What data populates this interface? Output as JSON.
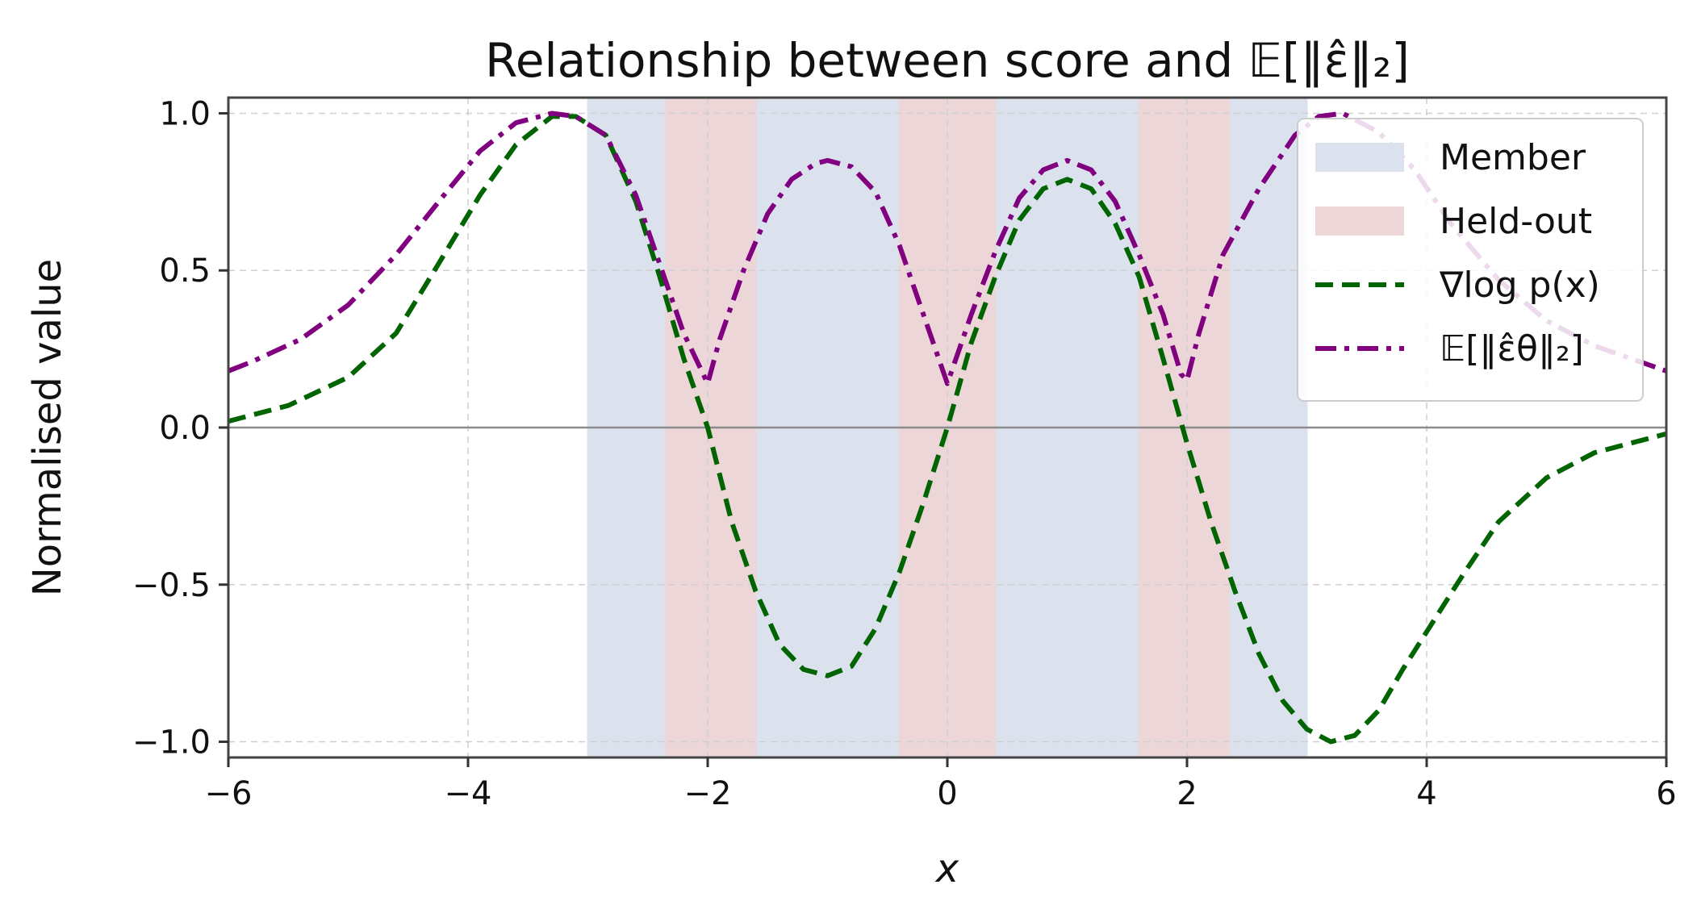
{
  "chart_data": {
    "type": "line",
    "title": "Relationship between score and 𝔼[‖ε̂‖₂]",
    "xlabel": "x",
    "ylabel": "Normalised value",
    "xlim": [
      -6,
      6
    ],
    "ylim": [
      -1.05,
      1.05
    ],
    "x_ticks": [
      -6,
      -4,
      -2,
      0,
      2,
      4,
      6
    ],
    "x_tick_labels": [
      "−6",
      "−4",
      "−2",
      "0",
      "2",
      "4",
      "6"
    ],
    "y_ticks": [
      1.0,
      0.5,
      0.0,
      -0.5,
      -1.0
    ],
    "y_tick_labels": [
      "1.0",
      "0.5",
      "0.0",
      "−0.5",
      "−1.0"
    ],
    "grid": true,
    "legend_position": "top-right",
    "regions": [
      {
        "name": "Member",
        "color": "#dbe2ee",
        "ranges": [
          [
            -3.0,
            -2.35
          ],
          [
            -1.6,
            -0.4
          ],
          [
            0.4,
            1.6
          ],
          [
            2.35,
            3.0
          ]
        ]
      },
      {
        "name": "Held-out",
        "color": "#ecd6d8",
        "ranges": [
          [
            -2.35,
            -1.6
          ],
          [
            -0.4,
            0.4
          ],
          [
            1.6,
            2.35
          ]
        ]
      }
    ],
    "series": [
      {
        "name": "∇log p(x)",
        "color": "#006400",
        "style": "dashed",
        "points": [
          [
            -6.0,
            0.02
          ],
          [
            -5.5,
            0.07
          ],
          [
            -5.0,
            0.16
          ],
          [
            -4.6,
            0.3
          ],
          [
            -4.2,
            0.55
          ],
          [
            -3.9,
            0.74
          ],
          [
            -3.6,
            0.9
          ],
          [
            -3.3,
            0.99
          ],
          [
            -3.1,
            0.99
          ],
          [
            -2.85,
            0.93
          ],
          [
            -2.6,
            0.72
          ],
          [
            -2.4,
            0.48
          ],
          [
            -2.2,
            0.22
          ],
          [
            -2.0,
            0.0
          ],
          [
            -1.8,
            -0.3
          ],
          [
            -1.6,
            -0.52
          ],
          [
            -1.4,
            -0.69
          ],
          [
            -1.2,
            -0.77
          ],
          [
            -1.0,
            -0.79
          ],
          [
            -0.8,
            -0.76
          ],
          [
            -0.6,
            -0.64
          ],
          [
            -0.4,
            -0.46
          ],
          [
            -0.2,
            -0.24
          ],
          [
            0.0,
            0.0
          ],
          [
            0.2,
            0.27
          ],
          [
            0.4,
            0.48
          ],
          [
            0.6,
            0.66
          ],
          [
            0.8,
            0.76
          ],
          [
            1.0,
            0.79
          ],
          [
            1.2,
            0.76
          ],
          [
            1.4,
            0.65
          ],
          [
            1.6,
            0.48
          ],
          [
            1.8,
            0.22
          ],
          [
            2.0,
            -0.05
          ],
          [
            2.2,
            -0.3
          ],
          [
            2.4,
            -0.52
          ],
          [
            2.6,
            -0.72
          ],
          [
            2.8,
            -0.87
          ],
          [
            3.0,
            -0.96
          ],
          [
            3.2,
            -1.0
          ],
          [
            3.4,
            -0.98
          ],
          [
            3.6,
            -0.9
          ],
          [
            3.8,
            -0.77
          ],
          [
            4.0,
            -0.65
          ],
          [
            4.3,
            -0.47
          ],
          [
            4.6,
            -0.3
          ],
          [
            5.0,
            -0.16
          ],
          [
            5.4,
            -0.08
          ],
          [
            6.0,
            -0.02
          ]
        ]
      },
      {
        "name": "𝔼[‖ε̂θ‖₂]",
        "color": "#800080",
        "style": "dashdot",
        "points": [
          [
            -6.0,
            0.18
          ],
          [
            -5.8,
            0.21
          ],
          [
            -5.4,
            0.28
          ],
          [
            -5.0,
            0.39
          ],
          [
            -4.6,
            0.55
          ],
          [
            -4.2,
            0.74
          ],
          [
            -3.9,
            0.88
          ],
          [
            -3.6,
            0.97
          ],
          [
            -3.3,
            1.0
          ],
          [
            -3.1,
            0.99
          ],
          [
            -2.85,
            0.93
          ],
          [
            -2.6,
            0.74
          ],
          [
            -2.4,
            0.52
          ],
          [
            -2.2,
            0.3
          ],
          [
            -2.05,
            0.18
          ],
          [
            -2.0,
            0.14
          ],
          [
            -1.9,
            0.28
          ],
          [
            -1.7,
            0.5
          ],
          [
            -1.5,
            0.68
          ],
          [
            -1.3,
            0.79
          ],
          [
            -1.1,
            0.84
          ],
          [
            -1.0,
            0.85
          ],
          [
            -0.8,
            0.83
          ],
          [
            -0.6,
            0.75
          ],
          [
            -0.4,
            0.58
          ],
          [
            -0.2,
            0.36
          ],
          [
            0.0,
            0.14
          ],
          [
            0.2,
            0.36
          ],
          [
            0.4,
            0.56
          ],
          [
            0.6,
            0.73
          ],
          [
            0.8,
            0.82
          ],
          [
            1.0,
            0.85
          ],
          [
            1.2,
            0.82
          ],
          [
            1.4,
            0.72
          ],
          [
            1.6,
            0.55
          ],
          [
            1.8,
            0.36
          ],
          [
            1.95,
            0.17
          ],
          [
            2.0,
            0.15
          ],
          [
            2.1,
            0.3
          ],
          [
            2.3,
            0.55
          ],
          [
            2.6,
            0.76
          ],
          [
            2.9,
            0.93
          ],
          [
            3.1,
            0.99
          ],
          [
            3.3,
            1.0
          ],
          [
            3.6,
            0.94
          ],
          [
            3.9,
            0.82
          ],
          [
            4.2,
            0.65
          ],
          [
            4.6,
            0.47
          ],
          [
            5.0,
            0.34
          ],
          [
            5.4,
            0.26
          ],
          [
            6.0,
            0.18
          ]
        ]
      }
    ]
  }
}
